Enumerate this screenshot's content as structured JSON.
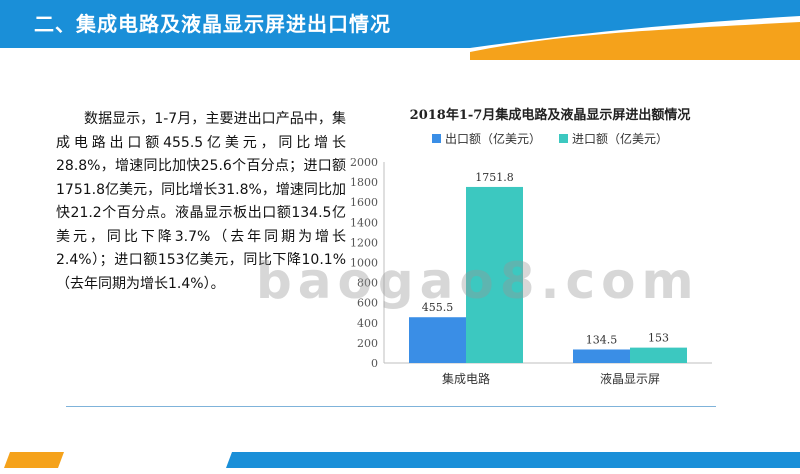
{
  "header": {
    "title": "二、集成电路及液晶显示屏进出口情况"
  },
  "body": {
    "paragraph": "数据显示，1-7月，主要进出口产品中，集成电路出口额455.5亿美元，同比增长28.8%，增速同比加快25.6个百分点；进口额1751.8亿美元，同比增长31.8%，增速同比加快21.2个百分点。液晶显示板出口额134.5亿美元，同比下降3.7%（去年同期为增长2.4%）；进口额153亿美元，同比下降10.1%（去年同期为增长1.4%）。"
  },
  "watermark": "baogao8.com",
  "colors": {
    "banner_blue": "#1a8fd8",
    "banner_orange": "#f5a21b",
    "export": "#3a8ee6",
    "import": "#3cc8c0"
  },
  "chart_data": {
    "type": "bar",
    "title": "2018年1-7月集成电路及液晶显示屏进出额情况",
    "categories": [
      "集成电路",
      "液晶显示屏"
    ],
    "series": [
      {
        "name": "出口额（亿美元）",
        "values": [
          455.5,
          134.5
        ],
        "labels": [
          "455.5",
          "134.5"
        ]
      },
      {
        "name": "进口额（亿美元）",
        "values": [
          1751.8,
          153
        ],
        "labels": [
          "1751.8",
          "153"
        ]
      }
    ],
    "ylim": [
      0,
      2000
    ],
    "yticks": [
      "0",
      "200",
      "400",
      "600",
      "800",
      "1000",
      "1200",
      "1400",
      "1600",
      "1800",
      "2000"
    ],
    "legend": "top",
    "grid": false
  }
}
